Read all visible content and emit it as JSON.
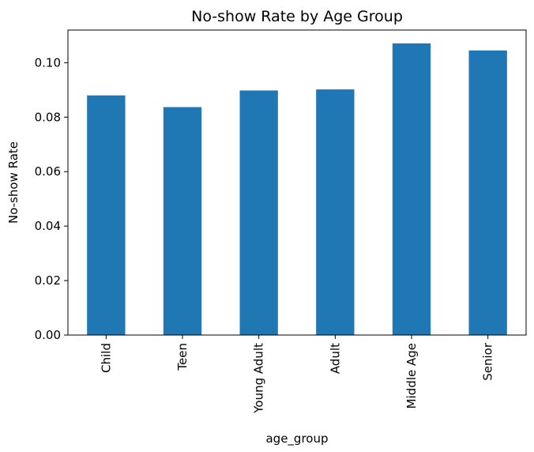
{
  "chart_data": {
    "type": "bar",
    "title": "No-show Rate by Age Group",
    "xlabel": "age_group",
    "ylabel": "No-show Rate",
    "categories": [
      "Child",
      "Teen",
      "Young Adult",
      "Adult",
      "Middle Age",
      "Senior"
    ],
    "values": [
      0.088,
      0.0837,
      0.0898,
      0.0902,
      0.1071,
      0.1045
    ],
    "ylim": [
      0,
      0.112
    ],
    "yticks": [
      0.0,
      0.02,
      0.04,
      0.06,
      0.08,
      0.1
    ],
    "ytick_labels": [
      "0.00",
      "0.02",
      "0.04",
      "0.06",
      "0.08",
      "0.10"
    ],
    "bar_color": "#1f77b4",
    "grid": false,
    "legend": "none"
  }
}
